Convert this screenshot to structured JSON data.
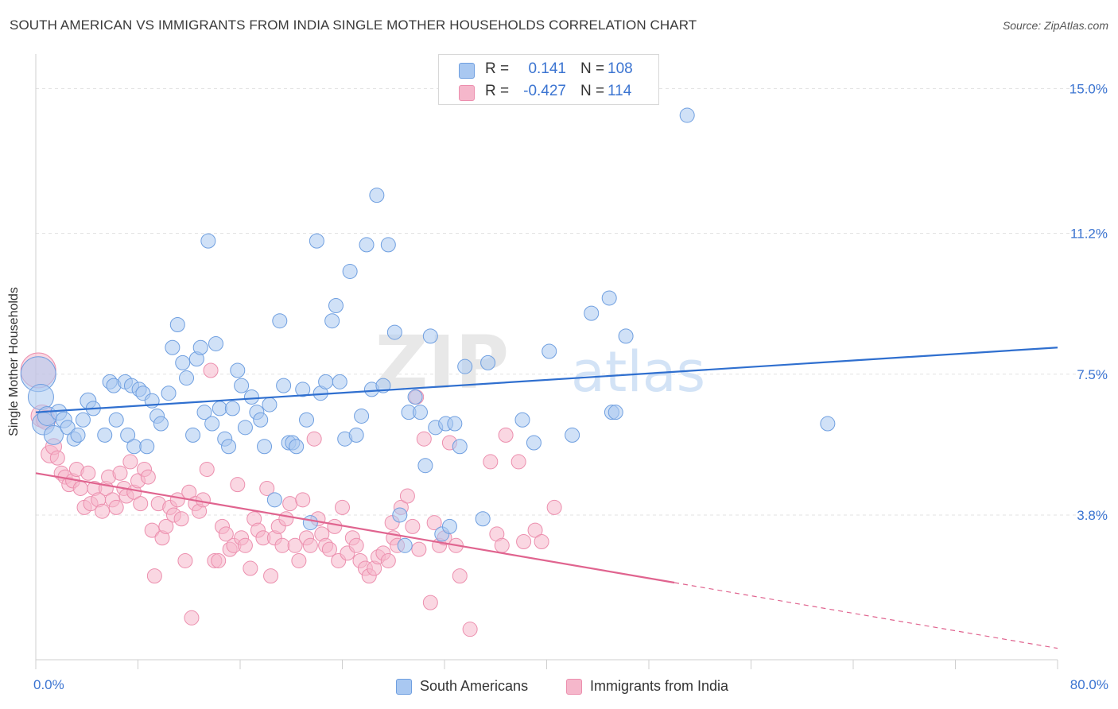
{
  "header": {
    "title": "SOUTH AMERICAN VS IMMIGRANTS FROM INDIA SINGLE MOTHER HOUSEHOLDS CORRELATION CHART",
    "source": "Source: ZipAtlas.com"
  },
  "watermark": {
    "zip": "ZIP",
    "atlas": "atlas"
  },
  "legend_top": {
    "rows": [
      {
        "r_label": "R =",
        "r_value": "0.141",
        "n_label": "N =",
        "n_value": "108",
        "color": "#a9c8f1"
      },
      {
        "r_label": "R =",
        "r_value": "-0.427",
        "n_label": "N =",
        "n_value": "114",
        "color": "#f5b7cb"
      }
    ]
  },
  "legend_bottom": {
    "items": [
      {
        "label": "South Americans",
        "color": "#a9c8f1"
      },
      {
        "label": "Immigrants from India",
        "color": "#f5b7cb"
      }
    ]
  },
  "colors": {
    "blue_fill": "#a9c8f1",
    "blue_stroke": "#6f9fe0",
    "blue_line": "#2f6fcf",
    "pink_fill": "#f5b7cb",
    "pink_stroke": "#ec8fae",
    "pink_line": "#e0648f",
    "tick_text": "#3b74d1",
    "grid": "#e3e3e3"
  },
  "chart_data": {
    "type": "scatter",
    "title": "SOUTH AMERICAN VS IMMIGRANTS FROM INDIA SINGLE MOTHER HOUSEHOLDS CORRELATION CHART",
    "xlabel": "",
    "ylabel": "Single Mother Households",
    "xlim": [
      0,
      80
    ],
    "ylim": [
      0,
      15.7
    ],
    "x_tick_labels": [
      "0.0%",
      "80.0%"
    ],
    "y_ticks": [
      3.8,
      7.5,
      11.2,
      15.0
    ],
    "y_tick_labels": [
      "3.8%",
      "7.5%",
      "11.2%",
      "15.0%"
    ],
    "grid": "horizontal dashed",
    "legend_placement": "top-center",
    "series": [
      {
        "name": "South Americans",
        "r": 0.141,
        "n": 108,
        "trend": {
          "x": [
            0,
            80
          ],
          "y": [
            6.5,
            8.2
          ],
          "dashed_from": null
        },
        "points": [
          [
            0.2,
            7.5,
            22
          ],
          [
            0.4,
            6.9,
            16
          ],
          [
            0.6,
            6.2,
            14
          ],
          [
            0.9,
            6.4,
            12
          ],
          [
            1.4,
            5.9,
            12
          ],
          [
            1.8,
            6.5,
            10
          ],
          [
            2.2,
            6.3,
            10
          ],
          [
            2.5,
            6.1,
            9
          ],
          [
            3.0,
            5.8,
            9
          ],
          [
            3.3,
            5.9,
            9
          ],
          [
            3.7,
            6.3,
            9
          ],
          [
            4.1,
            6.8,
            10
          ],
          [
            4.5,
            6.6,
            9
          ],
          [
            5.4,
            5.9,
            9
          ],
          [
            5.8,
            7.3,
            9
          ],
          [
            6.1,
            7.2,
            9
          ],
          [
            6.3,
            6.3,
            9
          ],
          [
            7.0,
            7.3,
            9
          ],
          [
            7.2,
            5.9,
            9
          ],
          [
            7.5,
            7.2,
            9
          ],
          [
            7.7,
            5.6,
            9
          ],
          [
            8.1,
            7.1,
            9
          ],
          [
            8.4,
            7.0,
            9
          ],
          [
            8.7,
            5.6,
            9
          ],
          [
            9.1,
            6.8,
            9
          ],
          [
            9.5,
            6.4,
            9
          ],
          [
            9.8,
            6.2,
            9
          ],
          [
            10.4,
            7.0,
            9
          ],
          [
            10.7,
            8.2,
            9
          ],
          [
            11.1,
            8.8,
            9
          ],
          [
            11.5,
            7.8,
            9
          ],
          [
            11.8,
            7.4,
            9
          ],
          [
            12.3,
            5.9,
            9
          ],
          [
            12.6,
            7.9,
            9
          ],
          [
            12.9,
            8.2,
            9
          ],
          [
            13.2,
            6.5,
            9
          ],
          [
            13.5,
            11.0,
            9
          ],
          [
            13.8,
            6.2,
            9
          ],
          [
            14.1,
            8.3,
            9
          ],
          [
            14.4,
            6.6,
            9
          ],
          [
            14.8,
            5.8,
            9
          ],
          [
            15.1,
            5.6,
            9
          ],
          [
            15.4,
            6.6,
            9
          ],
          [
            15.8,
            7.6,
            9
          ],
          [
            16.1,
            7.2,
            9
          ],
          [
            16.4,
            6.1,
            9
          ],
          [
            16.9,
            6.9,
            9
          ],
          [
            17.3,
            6.5,
            9
          ],
          [
            17.6,
            6.3,
            9
          ],
          [
            17.9,
            5.6,
            9
          ],
          [
            18.3,
            6.7,
            9
          ],
          [
            18.7,
            4.2,
            9
          ],
          [
            19.1,
            8.9,
            9
          ],
          [
            19.4,
            7.2,
            9
          ],
          [
            19.8,
            5.7,
            9
          ],
          [
            20.1,
            5.7,
            9
          ],
          [
            20.4,
            5.6,
            9
          ],
          [
            20.9,
            7.1,
            9
          ],
          [
            21.2,
            6.3,
            9
          ],
          [
            21.5,
            3.6,
            9
          ],
          [
            22.0,
            11.0,
            9
          ],
          [
            22.3,
            7.0,
            9
          ],
          [
            22.7,
            7.3,
            9
          ],
          [
            23.2,
            8.9,
            9
          ],
          [
            23.5,
            9.3,
            9
          ],
          [
            23.8,
            7.3,
            9
          ],
          [
            24.2,
            5.8,
            9
          ],
          [
            24.6,
            10.2,
            9
          ],
          [
            25.1,
            5.9,
            9
          ],
          [
            25.5,
            6.4,
            9
          ],
          [
            25.9,
            10.9,
            9
          ],
          [
            26.3,
            7.1,
            9
          ],
          [
            26.7,
            12.2,
            9
          ],
          [
            27.2,
            7.2,
            9
          ],
          [
            27.6,
            10.9,
            9
          ],
          [
            28.1,
            8.6,
            9
          ],
          [
            28.5,
            3.8,
            9
          ],
          [
            28.9,
            3.0,
            9
          ],
          [
            29.2,
            6.5,
            9
          ],
          [
            29.7,
            6.9,
            9
          ],
          [
            30.1,
            6.5,
            9
          ],
          [
            30.5,
            5.1,
            9
          ],
          [
            30.9,
            8.5,
            9
          ],
          [
            31.3,
            6.1,
            9
          ],
          [
            31.8,
            3.3,
            9
          ],
          [
            32.1,
            6.2,
            9
          ],
          [
            32.4,
            3.5,
            9
          ],
          [
            32.8,
            6.2,
            9
          ],
          [
            33.2,
            5.6,
            9
          ],
          [
            33.6,
            7.7,
            9
          ],
          [
            35.0,
            3.7,
            9
          ],
          [
            35.4,
            7.8,
            9
          ],
          [
            38.1,
            6.3,
            9
          ],
          [
            39.0,
            5.7,
            9
          ],
          [
            40.2,
            8.1,
            9
          ],
          [
            42.0,
            5.9,
            9
          ],
          [
            43.5,
            9.1,
            9
          ],
          [
            44.9,
            9.5,
            9
          ],
          [
            45.1,
            6.5,
            9
          ],
          [
            45.4,
            6.5,
            9
          ],
          [
            46.2,
            8.5,
            9
          ],
          [
            51.0,
            14.3,
            9
          ],
          [
            62.0,
            6.2,
            9
          ]
        ]
      },
      {
        "name": "Immigrants from India",
        "r": -0.427,
        "n": 114,
        "trend": {
          "x": [
            0,
            80
          ],
          "y": [
            4.9,
            0.3
          ],
          "dashed_from": 50
        },
        "points": [
          [
            0.2,
            7.6,
            22
          ],
          [
            0.5,
            6.4,
            14
          ],
          [
            0.8,
            6.3,
            12
          ],
          [
            1.1,
            5.4,
            11
          ],
          [
            1.4,
            5.6,
            10
          ],
          [
            1.7,
            5.3,
            9
          ],
          [
            2.0,
            4.9,
            9
          ],
          [
            2.3,
            4.8,
            9
          ],
          [
            2.6,
            4.6,
            9
          ],
          [
            2.9,
            4.7,
            9
          ],
          [
            3.2,
            5.0,
            9
          ],
          [
            3.5,
            4.5,
            9
          ],
          [
            3.8,
            4.0,
            9
          ],
          [
            4.1,
            4.9,
            9
          ],
          [
            4.3,
            4.1,
            9
          ],
          [
            4.6,
            4.5,
            9
          ],
          [
            4.9,
            4.2,
            9
          ],
          [
            5.2,
            3.9,
            9
          ],
          [
            5.5,
            4.5,
            9
          ],
          [
            5.7,
            4.8,
            9
          ],
          [
            6.0,
            4.2,
            9
          ],
          [
            6.3,
            4.0,
            9
          ],
          [
            6.6,
            4.9,
            9
          ],
          [
            6.9,
            4.5,
            9
          ],
          [
            7.1,
            4.3,
            9
          ],
          [
            7.4,
            5.2,
            9
          ],
          [
            7.7,
            4.4,
            9
          ],
          [
            8.0,
            4.7,
            9
          ],
          [
            8.2,
            4.1,
            9
          ],
          [
            8.5,
            5.0,
            9
          ],
          [
            8.8,
            4.8,
            9
          ],
          [
            9.1,
            3.4,
            9
          ],
          [
            9.3,
            2.2,
            9
          ],
          [
            9.6,
            4.1,
            9
          ],
          [
            9.9,
            3.2,
            9
          ],
          [
            10.2,
            3.5,
            9
          ],
          [
            10.5,
            4.0,
            9
          ],
          [
            10.8,
            3.8,
            9
          ],
          [
            11.1,
            4.2,
            9
          ],
          [
            11.4,
            3.7,
            9
          ],
          [
            11.7,
            2.6,
            9
          ],
          [
            12.0,
            4.4,
            9
          ],
          [
            12.2,
            1.1,
            9
          ],
          [
            12.5,
            4.1,
            9
          ],
          [
            12.8,
            3.9,
            9
          ],
          [
            13.1,
            4.2,
            9
          ],
          [
            13.4,
            5.0,
            9
          ],
          [
            13.7,
            7.6,
            9
          ],
          [
            14.0,
            2.6,
            9
          ],
          [
            14.3,
            2.6,
            9
          ],
          [
            14.6,
            3.5,
            9
          ],
          [
            14.9,
            3.3,
            9
          ],
          [
            15.2,
            2.9,
            9
          ],
          [
            15.5,
            3.0,
            9
          ],
          [
            15.8,
            4.6,
            9
          ],
          [
            16.1,
            3.2,
            9
          ],
          [
            16.4,
            3.0,
            9
          ],
          [
            16.8,
            2.4,
            9
          ],
          [
            17.1,
            3.7,
            9
          ],
          [
            17.4,
            3.4,
            9
          ],
          [
            17.8,
            3.2,
            9
          ],
          [
            18.1,
            4.5,
            9
          ],
          [
            18.4,
            2.2,
            9
          ],
          [
            18.7,
            3.2,
            9
          ],
          [
            19.0,
            3.5,
            9
          ],
          [
            19.3,
            3.0,
            9
          ],
          [
            19.6,
            3.7,
            9
          ],
          [
            19.9,
            4.1,
            9
          ],
          [
            20.3,
            3.0,
            9
          ],
          [
            20.6,
            2.6,
            9
          ],
          [
            20.9,
            4.2,
            9
          ],
          [
            21.2,
            3.2,
            9
          ],
          [
            21.5,
            3.0,
            9
          ],
          [
            21.8,
            5.8,
            9
          ],
          [
            22.1,
            3.7,
            9
          ],
          [
            22.4,
            3.3,
            9
          ],
          [
            22.7,
            3.0,
            9
          ],
          [
            23.0,
            2.9,
            9
          ],
          [
            23.4,
            3.5,
            9
          ],
          [
            23.7,
            2.6,
            9
          ],
          [
            24.0,
            4.0,
            9
          ],
          [
            24.4,
            2.8,
            9
          ],
          [
            24.8,
            3.2,
            9
          ],
          [
            25.1,
            3.0,
            9
          ],
          [
            25.4,
            2.6,
            9
          ],
          [
            25.8,
            2.4,
            9
          ],
          [
            26.1,
            2.2,
            9
          ],
          [
            26.5,
            2.4,
            9
          ],
          [
            26.8,
            2.7,
            9
          ],
          [
            27.2,
            2.8,
            9
          ],
          [
            27.6,
            2.6,
            9
          ],
          [
            28.0,
            3.2,
            9
          ],
          [
            28.3,
            3.0,
            9
          ],
          [
            28.6,
            4.0,
            9
          ],
          [
            29.1,
            4.3,
            9
          ],
          [
            29.5,
            3.5,
            9
          ],
          [
            29.8,
            6.9,
            9
          ],
          [
            30.4,
            5.8,
            9
          ],
          [
            30.9,
            1.5,
            9
          ],
          [
            31.2,
            3.6,
            9
          ],
          [
            31.6,
            3.0,
            9
          ],
          [
            32.0,
            3.2,
            9
          ],
          [
            32.4,
            5.7,
            9
          ],
          [
            32.9,
            3.0,
            9
          ],
          [
            33.2,
            2.2,
            9
          ],
          [
            34.0,
            0.8,
            9
          ],
          [
            35.6,
            5.2,
            9
          ],
          [
            36.1,
            3.3,
            9
          ],
          [
            36.5,
            3.0,
            9
          ],
          [
            37.8,
            5.2,
            9
          ],
          [
            38.2,
            3.1,
            9
          ],
          [
            39.1,
            3.4,
            9
          ],
          [
            39.6,
            3.1,
            9
          ],
          [
            40.6,
            4.0,
            9
          ],
          [
            36.8,
            5.9,
            9
          ],
          [
            30.0,
            2.9,
            9
          ],
          [
            27.9,
            3.6,
            9
          ]
        ]
      }
    ]
  }
}
